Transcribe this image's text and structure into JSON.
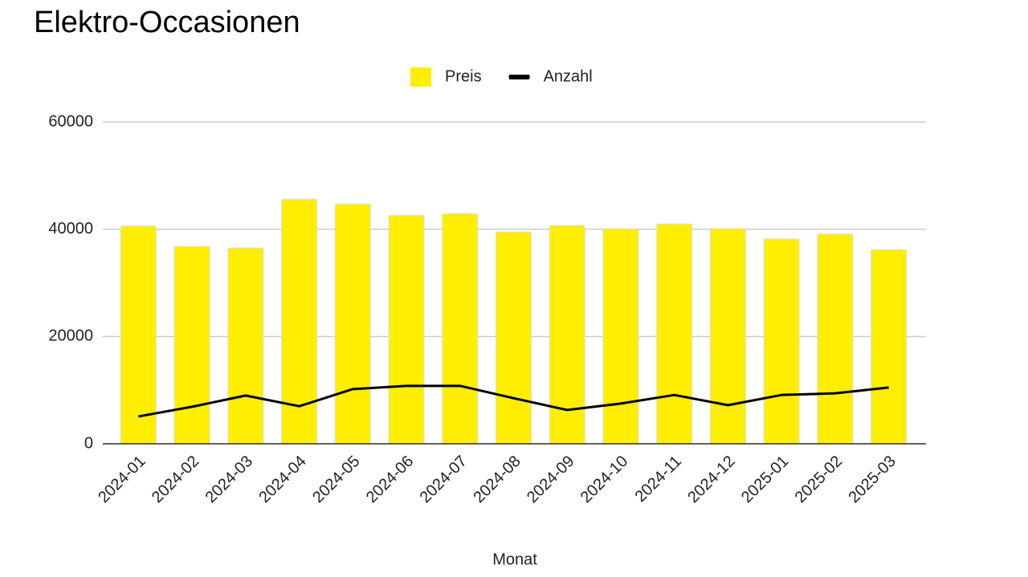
{
  "chart_data": {
    "type": "bar",
    "title": "Elektro-Occasionen",
    "x_label": "Monat",
    "categories": [
      "2024-01",
      "2024-02",
      "2024-03",
      "2024-04",
      "2024-05",
      "2024-06",
      "2024-07",
      "2024-08",
      "2024-09",
      "2024-10",
      "2024-11",
      "2024-12",
      "2025-01",
      "2025-02",
      "2025-03"
    ],
    "series": [
      {
        "name": "Preis",
        "type": "bar",
        "color": "#ffee00",
        "values": [
          40600,
          36800,
          36500,
          45600,
          44700,
          42600,
          42900,
          39500,
          40700,
          40100,
          41000,
          40100,
          38200,
          39100,
          36200
        ]
      },
      {
        "name": "Anzahl",
        "type": "line",
        "color": "#000000",
        "values": [
          5100,
          6900,
          9000,
          7000,
          10200,
          10800,
          10800,
          8500,
          6300,
          7500,
          9100,
          7200,
          9100,
          9400,
          10500
        ]
      }
    ],
    "ylim": [
      0,
      60000
    ],
    "yticks": [
      0,
      20000,
      40000,
      60000
    ],
    "grid": true,
    "legend": "top"
  }
}
